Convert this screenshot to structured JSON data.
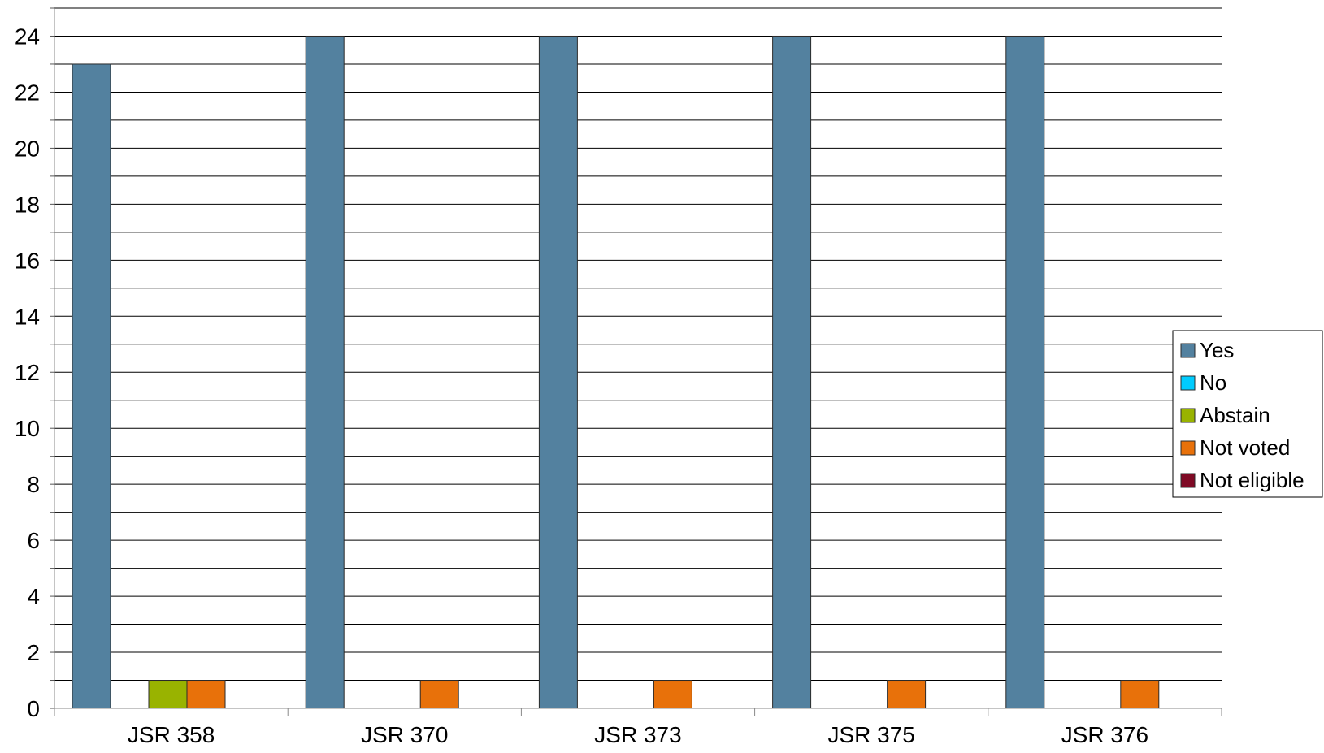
{
  "chart_data": {
    "type": "bar",
    "categories": [
      "JSR 358",
      "JSR 370",
      "JSR 373",
      "JSR 375",
      "JSR 376"
    ],
    "series": [
      {
        "name": "Yes",
        "color": "#53819F",
        "values": [
          23,
          24,
          24,
          24,
          24
        ]
      },
      {
        "name": "No",
        "color": "#00CCFF",
        "values": [
          0,
          0,
          0,
          0,
          0
        ]
      },
      {
        "name": "Abstain",
        "color": "#99B300",
        "values": [
          1,
          0,
          0,
          0,
          0
        ]
      },
      {
        "name": "Not voted",
        "color": "#E8710A",
        "values": [
          1,
          1,
          1,
          1,
          1
        ]
      },
      {
        "name": "Not eligible",
        "color": "#7F0A25",
        "values": [
          0,
          0,
          0,
          0,
          0
        ]
      }
    ],
    "ylim": [
      0,
      25
    ],
    "yticks": [
      0,
      2,
      4,
      6,
      8,
      10,
      12,
      14,
      16,
      18,
      20,
      22,
      24
    ],
    "grid": true,
    "legend_position": "right"
  }
}
